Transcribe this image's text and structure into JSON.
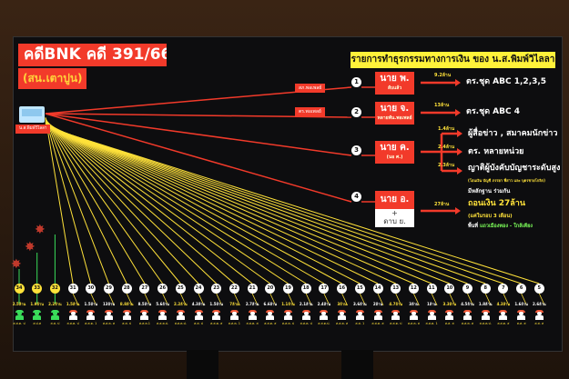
{
  "header": {
    "title": "คดีBNK คดี 391/66",
    "subtitle": "(สน.เตาปูน)",
    "banner": "รายการทำธุรกรรมทางการเงิน ของ น.ส.พิมพ์วิไลลา"
  },
  "origin": {
    "label": "น.ส.พิมพ์วิไลลา",
    "icon": "laptop-icon"
  },
  "colors": {
    "accent_red": "#f23a2a",
    "banner_yellow": "#fff23a",
    "line_yellow": "#ffe23a",
    "green": "#3adc5a"
  },
  "branches": [
    {
      "num": "1",
      "via": "สภ.พอเพลย์",
      "name": "นาย พ.",
      "note": "ลับแล้ว",
      "amount": "9.2ล้าน",
      "dest": "ตร.ชุด ABC 1,2,3,5"
    },
    {
      "num": "2",
      "via": "ตร.พอเพลย์",
      "name": "นาย จ.",
      "note": "หลายพัน.พอเพลย์",
      "amount": "13ล้าน",
      "dest": "ตร.ชุด ABC 4"
    },
    {
      "num": "3",
      "name": "นาย ค.",
      "note": "(นอ ศ.)",
      "subs": [
        {
          "amount": "1.4ล้าน",
          "dest": "ผู้สื่อข่าว , สมาคมนักข่าว"
        },
        {
          "amount": "2.4ล้าน",
          "dest": "ตร. หลายหน่วย"
        },
        {
          "amount": "2.3ล้าน",
          "dest": "ญาติผู้บังคับบัญชาระดับสูง",
          "note": "(โอนเงิน บัญชี ภรรยา พี่สาว และ บุตรชายโกลิก)"
        }
      ]
    },
    {
      "num": "4",
      "name": "นาย อ.",
      "plus": "+",
      "name2": "ดาบ ย.",
      "amount": "27ล้าน",
      "lines": [
        "มีหลักฐาน ร่วมกัน",
        "ถอนเงิน 27ล้าน",
        "(แค่ในรอบ 3 เดือน)"
      ],
      "area_label": "พื้นที่",
      "area": "แถวเมืองทอง - ใกล้เคียง"
    }
  ],
  "nodes": [
    {
      "num": "34",
      "amount": "2.5ล้าน",
      "label": "ส.ส.ต. ป",
      "green": true
    },
    {
      "num": "33",
      "amount": "1.9ล้าน",
      "label": "ส.ป.ส",
      "green": true
    },
    {
      "num": "32",
      "amount": "2.2ล้าน",
      "label": "ส.ส. ป",
      "green": true
    },
    {
      "num": "31",
      "amount": "1.5ล้าน",
      "label": "ส.ส.ต. ป"
    },
    {
      "num": "30",
      "amount": "1.5ล้าน",
      "label": "ส.ส.ต. 1"
    },
    {
      "num": "29",
      "amount": "13ล้าน",
      "label": "ส.ส.ต. ส"
    },
    {
      "num": "28",
      "amount": "8.8ล้าน",
      "label": "ส.ส. ป"
    },
    {
      "num": "27",
      "amount": "8.5ล้าน",
      "label": "ส.ส.ต.1"
    },
    {
      "num": "26",
      "amount": "5.6ล้าน",
      "label": "ส.ส.ต.ป."
    },
    {
      "num": "25",
      "amount": "2.2ล้าน",
      "label": "ส.ส.ต.ป."
    },
    {
      "num": "24",
      "amount": "4.3ล้าน",
      "label": "ส.ส. ป"
    },
    {
      "num": "23",
      "amount": "1.5ล้าน",
      "label": "ส.ส.ต. ส"
    },
    {
      "num": "22",
      "amount": "7ล้าน",
      "label": "ส.ส.ต. 1"
    },
    {
      "num": "21",
      "amount": "2.7ล้าน",
      "label": "ส.ส.ต. ส"
    },
    {
      "num": "20",
      "amount": "6.6ล้าน",
      "label": "ส.ส.ต. ส"
    },
    {
      "num": "19",
      "amount": "1.1ล้าน",
      "label": "ส.ส.ต. ป"
    },
    {
      "num": "18",
      "amount": "2.1ล้าน",
      "label": "ส.ส.ต. ป"
    },
    {
      "num": "17",
      "amount": "2.4ล้าน",
      "label": "ส.ส.ต.ป."
    },
    {
      "num": "16",
      "amount": "3ล้าน",
      "label": "ส.ส.ต. ส"
    },
    {
      "num": "15",
      "amount": "3.6ล้าน",
      "label": "ส.ส. 1"
    },
    {
      "num": "14",
      "amount": "2ล้าน",
      "label": "ส.ส.ต. ส"
    },
    {
      "num": "13",
      "amount": "4.7ล้าน",
      "label": "ส.ส.ต. ป"
    },
    {
      "num": "12",
      "amount": "3ล้าน",
      "label": "ส.ส.ต. ส"
    },
    {
      "num": "11",
      "amount": "1ล้าน",
      "label": "ส.ส.ต. 1"
    },
    {
      "num": "10",
      "amount": "3.3ล้าน",
      "label": "ส.ส. ส"
    },
    {
      "num": "9",
      "amount": "4.5ล้าน",
      "label": "ส.ส.ต. ส"
    },
    {
      "num": "8",
      "amount": "1.8ล้าน",
      "label": "ส.ส.ต.ป."
    },
    {
      "num": "7",
      "amount": "4.3ล้าน",
      "label": "ส.ส.ต. ส"
    },
    {
      "num": "6",
      "amount": "1.6ล้าน",
      "label": "ส.ส. ส"
    },
    {
      "num": "5",
      "amount": "2.6ล้าน",
      "label": "ส.ส. ส"
    }
  ]
}
